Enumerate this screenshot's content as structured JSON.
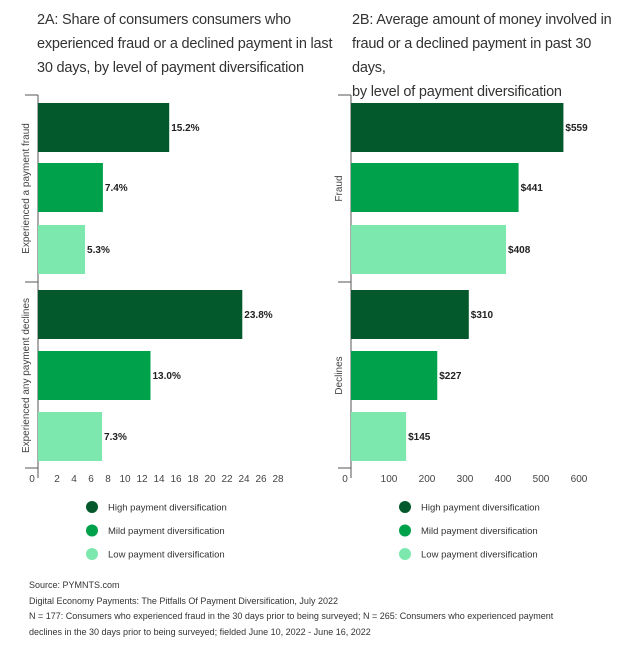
{
  "colors": {
    "high": "#03592b",
    "mild": "#00a14b",
    "low": "#7de8ae"
  },
  "legend": [
    "High payment diversification",
    "Mild payment diversification",
    "Low payment diversification"
  ],
  "chart_data": [
    {
      "type": "bar",
      "orientation": "horizontal",
      "title": "2A: Share of consumers consumers who experienced fraud or a declined payment in last 30 days, by level of payment diversification",
      "title_lines": [
        "2A: Share of consumers consumers who",
        "experienced fraud or a declined payment in last",
        "30 days, by level of payment diversification"
      ],
      "categories": [
        "Experienced a payment fraud",
        "Experienced any payment declines"
      ],
      "series": [
        {
          "name": "High payment diversification",
          "values": [
            15.2,
            23.8
          ],
          "labels": [
            "15.2%",
            "23.8%"
          ]
        },
        {
          "name": "Mild payment diversification",
          "values": [
            7.4,
            13.0
          ],
          "labels": [
            "7.4%",
            "13.0%"
          ]
        },
        {
          "name": "Low payment diversification",
          "values": [
            5.3,
            7.3
          ],
          "labels": [
            "5.3%",
            "7.3%"
          ]
        }
      ],
      "xlim": [
        0,
        28
      ],
      "xticks": [
        "0",
        "2",
        "4",
        "6",
        "8",
        "10",
        "12",
        "14",
        "16",
        "18",
        "20",
        "22",
        "24",
        "26",
        "28"
      ],
      "grid": false,
      "legend_position": "bottom"
    },
    {
      "type": "bar",
      "orientation": "horizontal",
      "title": "2B: Average amount of money involved in fraud or a declined payment in past 30 days, by level of payment diversification",
      "title_lines": [
        "2B: Average amount of money involved in",
        "fraud or a declined payment in past 30 days,",
        "by level of payment diversification"
      ],
      "categories": [
        "Fraud",
        "Declines"
      ],
      "series": [
        {
          "name": "High payment diversification",
          "values": [
            559,
            310
          ],
          "labels": [
            "$559",
            "$310"
          ]
        },
        {
          "name": "Mild payment diversification",
          "values": [
            441,
            227
          ],
          "labels": [
            "$441",
            "$227"
          ]
        },
        {
          "name": "Low payment diversification",
          "values": [
            408,
            145
          ],
          "labels": [
            "$408",
            "$145"
          ]
        }
      ],
      "xlim": [
        0,
        600
      ],
      "xticks": [
        "0",
        "100",
        "200",
        "300",
        "400",
        "500",
        "600"
      ],
      "grid": false,
      "legend_position": "bottom"
    }
  ],
  "footer": [
    "Source: PYMNTS.com",
    "Digital Economy Payments: The Pitfalls Of Payment Diversification, July 2022",
    "N = 177: Consumers who experienced fraud in the 30 days prior to being surveyed; N = 265: Consumers who experienced payment",
    "declines in the 30 days prior to being surveyed; fielded June 10, 2022 - June 16, 2022"
  ]
}
